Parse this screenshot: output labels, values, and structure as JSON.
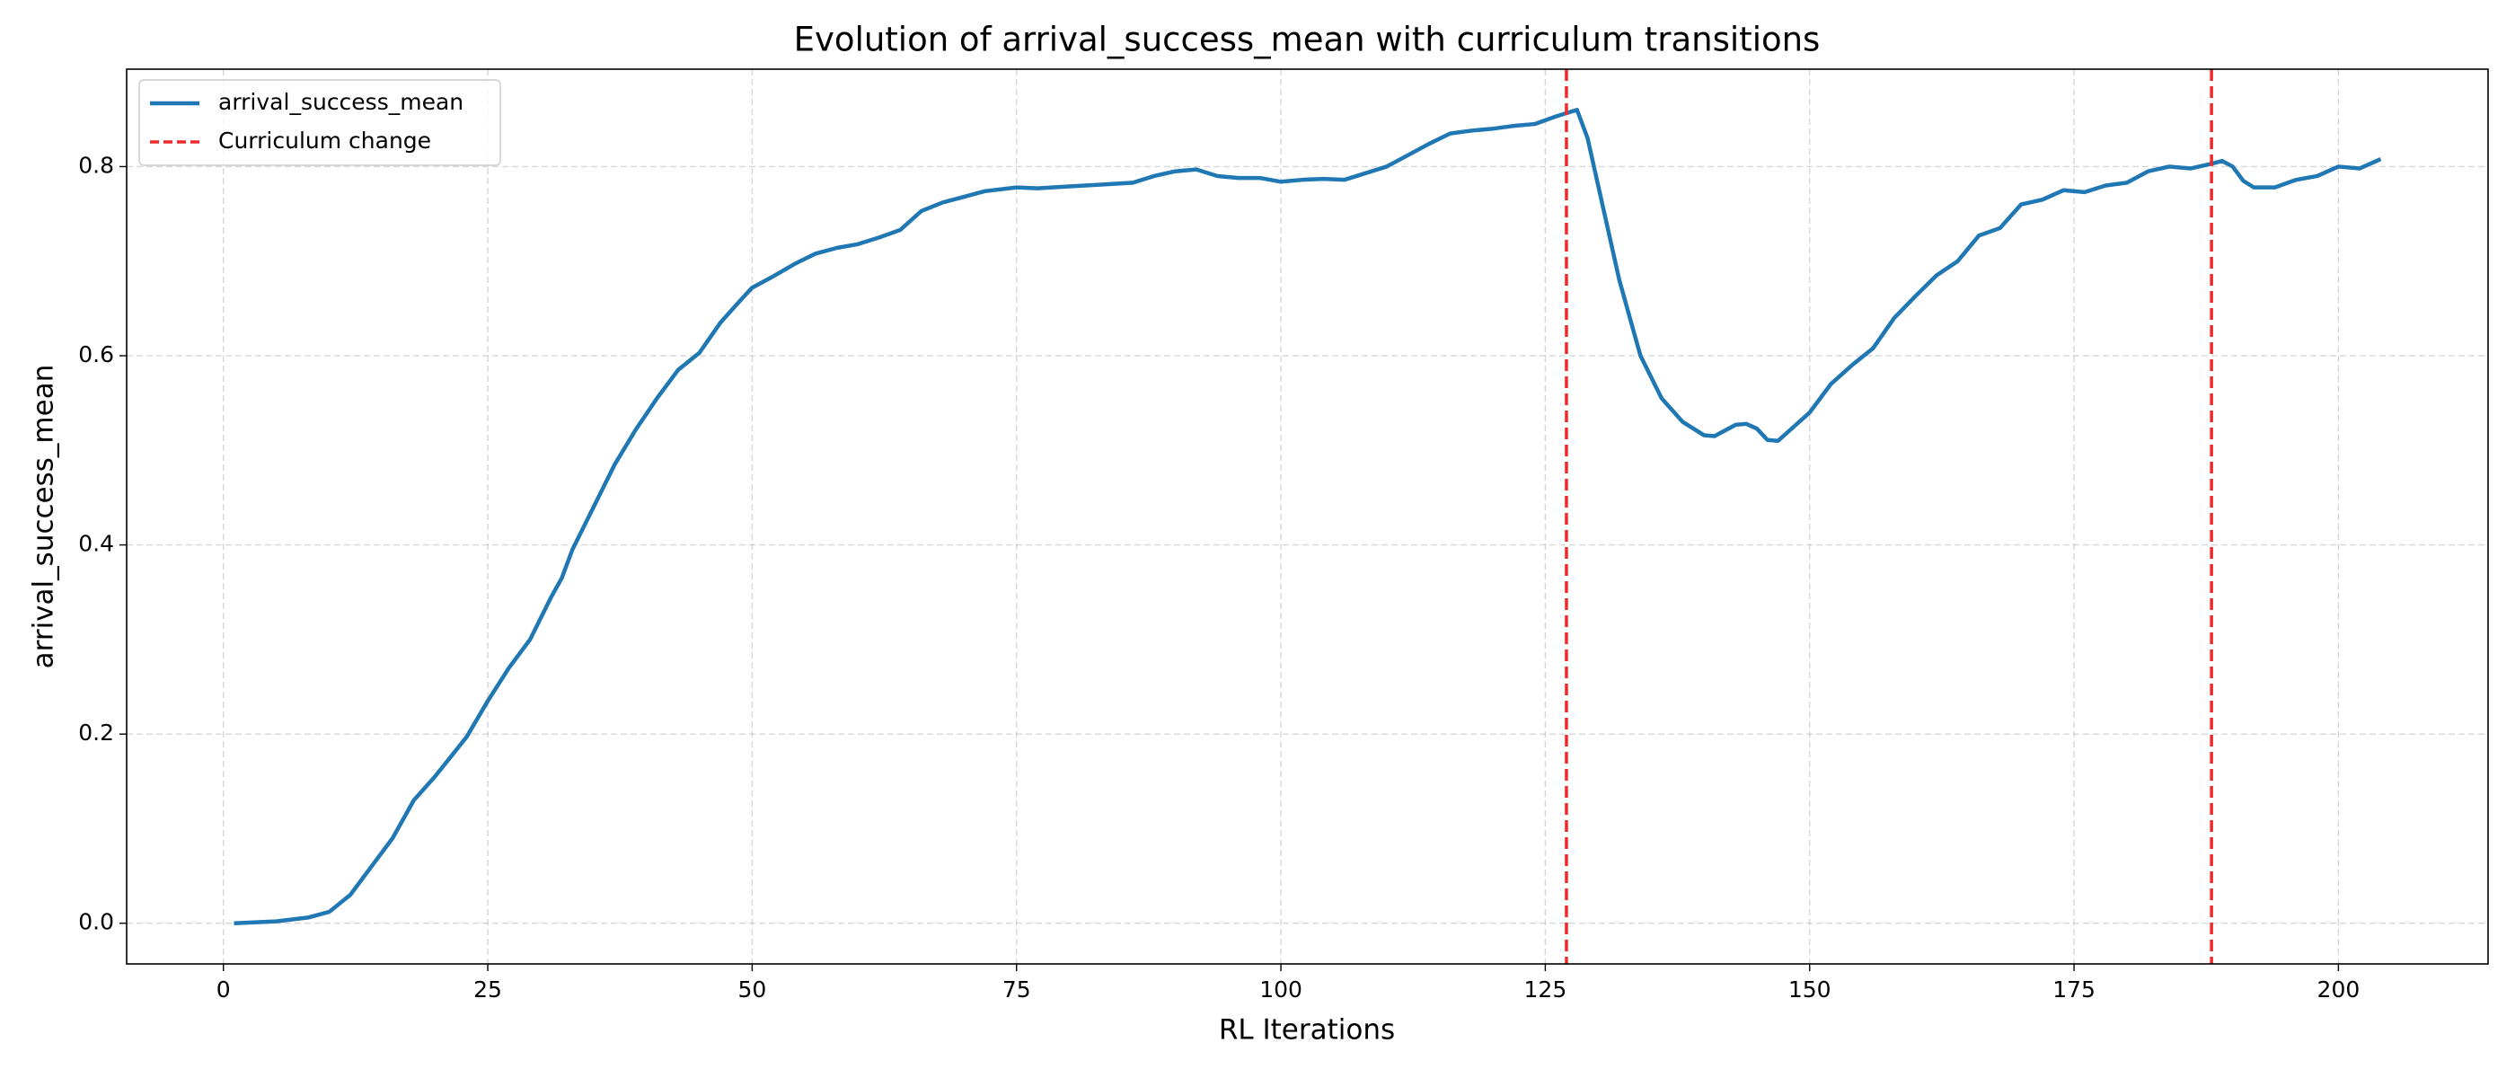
{
  "chart_data": {
    "type": "line",
    "title": "Evolution of arrival_success_mean with curriculum transitions",
    "x_label": "RL Iterations",
    "y_label": "arrival_success_mean",
    "xlim": [
      -9.15,
      214.15
    ],
    "ylim": [
      -0.043,
      0.903
    ],
    "xticks": [
      0,
      25,
      50,
      75,
      100,
      125,
      150,
      175,
      200
    ],
    "yticks": [
      {
        "value": 0,
        "label": "0.0"
      },
      0.2,
      0.4,
      0.6,
      0.8
    ],
    "grid": true,
    "legend": "upper left",
    "series": [
      {
        "name": "arrival_success_mean",
        "color": "#1f77b4",
        "x": [
          1,
          5,
          8,
          10,
          12,
          14,
          16,
          18,
          20,
          22,
          23,
          25,
          27,
          29,
          31,
          32,
          33,
          35,
          37,
          39,
          41,
          43,
          45,
          47,
          49,
          50,
          52,
          54,
          56,
          58,
          60,
          62,
          64,
          66,
          68,
          70,
          72,
          75,
          77,
          80,
          83,
          86,
          88,
          90,
          92,
          94,
          96,
          98,
          100,
          102,
          104,
          106,
          108,
          110,
          112,
          114,
          116,
          118,
          120,
          122,
          124,
          126,
          128,
          129,
          130,
          132,
          134,
          136,
          138,
          140,
          141,
          143,
          144,
          145,
          146,
          147,
          148,
          150,
          152,
          154,
          156,
          158,
          160,
          162,
          164,
          166,
          168,
          170,
          172,
          174,
          176,
          178,
          180,
          182,
          184,
          186,
          188,
          189,
          190,
          191,
          192,
          194,
          196,
          198,
          200,
          202,
          204
        ],
        "values": [
          0.0,
          0.002,
          0.006,
          0.012,
          0.03,
          0.06,
          0.09,
          0.13,
          0.155,
          0.183,
          0.197,
          0.235,
          0.27,
          0.3,
          0.345,
          0.365,
          0.395,
          0.44,
          0.485,
          0.522,
          0.555,
          0.585,
          0.603,
          0.635,
          0.66,
          0.672,
          0.684,
          0.697,
          0.708,
          0.714,
          0.718,
          0.725,
          0.733,
          0.753,
          0.762,
          0.768,
          0.774,
          0.778,
          0.777,
          0.779,
          0.781,
          0.783,
          0.79,
          0.795,
          0.797,
          0.79,
          0.788,
          0.788,
          0.784,
          0.786,
          0.787,
          0.786,
          0.793,
          0.8,
          0.812,
          0.824,
          0.835,
          0.838,
          0.84,
          0.843,
          0.845,
          0.853,
          0.86,
          0.83,
          0.78,
          0.68,
          0.6,
          0.555,
          0.53,
          0.516,
          0.515,
          0.527,
          0.528,
          0.523,
          0.511,
          0.51,
          0.52,
          0.54,
          0.57,
          0.59,
          0.608,
          0.64,
          0.663,
          0.685,
          0.7,
          0.727,
          0.735,
          0.76,
          0.765,
          0.775,
          0.773,
          0.78,
          0.783,
          0.795,
          0.8,
          0.798,
          0.803,
          0.806,
          0.8,
          0.785,
          0.778,
          0.778,
          0.786,
          0.79,
          0.8,
          0.798,
          0.808
        ]
      }
    ],
    "vlines": {
      "name": "Curriculum change",
      "color": "#ee2a2a",
      "x": [
        127,
        188
      ]
    }
  }
}
